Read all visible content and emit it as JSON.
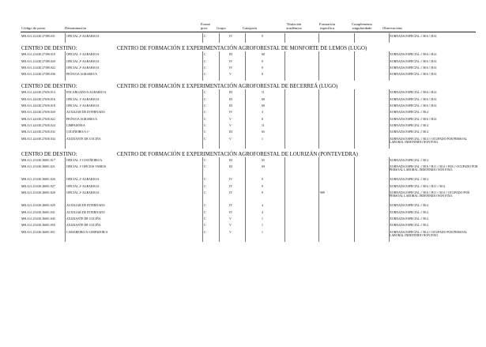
{
  "headers": {
    "codigo": "Código do posto",
    "denominacion": "Denominación",
    "forma": "Forma prov.",
    "grupo": "Grupo",
    "categoria": "Categoría",
    "titulacion": "Titulación académica",
    "formacion": "Formación específica",
    "complemento": "Complemento singularidade",
    "observacions": "Observacións"
  },
  "sections": [
    {
      "label": "",
      "title": "",
      "rows": [
        {
          "code": "MR.A11.22.630.27390.031",
          "den": "OFICIAL 2ª AGRARIO/A",
          "forma": "C",
          "grupo": "IV",
          "cat": "9",
          "form": "",
          "obs": "XORNADA ESPECIAL // B16 // B14"
        }
      ]
    },
    {
      "label": "CENTRO DE DESTINO:",
      "title": "CENTRO DE FORMACIÓN E EXPERIMENTACIÓN AGROFORESTAL DE MONFORTE DE LEMOS (LUGO)",
      "rows": [
        {
          "code": "MR.A11.23.630.27390.018",
          "den": "OFICIAL 1ª AGRARIO/A",
          "forma": "C",
          "grupo": "III",
          "cat": "68",
          "form": "",
          "obs": "XORNADA ESPECIAL // B16 // B14"
        },
        {
          "code": "MR.A11.23.630.27390.020",
          "den": "OFICIAL 2ª AGRARIO/A",
          "forma": "C",
          "grupo": "IV",
          "cat": "9",
          "form": "",
          "obs": "XORNADA ESPECIAL // B16 // B14"
        },
        {
          "code": "MR.A11.23.630.27390.022",
          "den": "OFICIAL 2ª AGRARIO/A",
          "forma": "C",
          "grupo": "IV",
          "cat": "9",
          "form": "",
          "obs": "XORNADA ESPECIAL // B16 // B14"
        },
        {
          "code": "MR.A11.23.630.27390.036",
          "den": "PEÓN/OA AGRARIO/A",
          "forma": "C",
          "grupo": "V",
          "cat": "8",
          "form": "",
          "obs": "XORNADA ESPECIAL // B16 // B14"
        }
      ]
    },
    {
      "label": "CENTRO DE DESTINO:",
      "title": "CENTRO DE FORMACIÓN E EXPERIMENTACIÓN AGROFORESTAL DE BECERREÁ (LUGO)",
      "rows": [
        {
          "code": "MR.A11.24.630.27650.014",
          "den": "ENCARGADO/A AGRARIO/A",
          "forma": "C",
          "grupo": "III",
          "cat": "11",
          "form": "",
          "obs": "XORNADA ESPECIAL // B16 // B14"
        },
        {
          "code": "MR.A11.24.630.27650.016",
          "den": "OFICIAL 1ª AGRARIO/A",
          "forma": "C",
          "grupo": "III",
          "cat": "68",
          "form": "",
          "obs": "XORNADA ESPECIAL // B16 // B14"
        },
        {
          "code": "MR.A11.24.630.27650.018",
          "den": "OFICIAL 1ª AGRARIO/A",
          "forma": "C",
          "grupo": "III",
          "cat": "68",
          "form": "",
          "obs": "XORNADA ESPECIAL // B16 // B14"
        },
        {
          "code": "MR.A11.24.630.27650.020",
          "den": "AUXILIAR DE INTERNADO",
          "forma": "C",
          "grupo": "IV",
          "cat": "4",
          "form": "",
          "obs": "XORNADA ESPECIAL // B14"
        },
        {
          "code": "MR.A11.24.630.27650.022",
          "den": "PEÓN/OA AGRARIO/A",
          "forma": "C",
          "grupo": "V",
          "cat": "8",
          "form": "",
          "obs": "XORNADA ESPECIAL // B16 // B14"
        },
        {
          "code": "MR.A11.24.630.27650.024",
          "den": "LIMPADOR/A",
          "forma": "C",
          "grupo": "V",
          "cat": "11",
          "form": "",
          "obs": "XORNADA ESPECIAL // B14"
        },
        {
          "code": "MR.A11.24.630.27650.032",
          "den": "COCIÑEIRO/A 1ª",
          "forma": "C",
          "grupo": "III",
          "cat": "65",
          "form": "",
          "obs": "XORNADA ESPECIAL // B14"
        },
        {
          "code": "MR.A11.24.630.27650.034",
          "den": "AXUDANTE DE COCIÑA",
          "forma": "C",
          "grupo": "V",
          "cat": "1",
          "form": "",
          "obs": "XORNADA ESPECIAL // B14 // OCUPADO POR PERSOAL LABORAL INDEFINIDO NON FIXO."
        }
      ]
    },
    {
      "label": "CENTRO DE DESTINO:",
      "title": "CENTRO DE FORMACIÓN E EXPERIMENTACIÓN AGROFORESTAL DE LOURIZÁN (PONTEVEDRA)",
      "rows": [
        {
          "code": "MR.A11.25.630.36001.017",
          "den": "OFICIAL 1ª COCIÑEIRO/A",
          "forma": "C",
          "grupo": "III",
          "cat": "65",
          "form": "",
          "obs": "XORNADA ESPECIAL // B14"
        },
        {
          "code": "MR.A11.25.630.36001.021",
          "den": "OFICIAL 1ª OFICIOS VARIOS",
          "forma": "C",
          "grupo": "III",
          "cat": "69",
          "form": "",
          "obs": "XORNADA ESPECIAL // B16 // B11 // B14 // B18 // OCUPADO POR PERSOAL LABORAL INDEFINIDO NON FIXO."
        },
        {
          "code": "MR.A11.25.630.36001.026",
          "den": "OFICIAL 2ª AGRARIO/A",
          "forma": "C",
          "grupo": "IV",
          "cat": "9",
          "form": "",
          "obs": "XORNADA ESPECIAL // B14"
        },
        {
          "code": "MR.A11.25.630.36001.027",
          "den": "OFICIAL 2ª AGRARIO/A",
          "forma": "C",
          "grupo": "IV",
          "cat": "9",
          "form": "",
          "obs": "XORNADA ESPECIAL // B16 // B11 // B14"
        },
        {
          "code": "MR.A11.25.630.36001.028",
          "den": "OFICIAL 2ª AGRARIO/A",
          "forma": "C",
          "grupo": "IV",
          "cat": "9",
          "form": "989",
          "obs": "XORNADA ESPECIAL // B16 // B11 // B14 // OCUPADO POR PERSOAL LABORAL INDEFINIDO NON FIXO."
        },
        {
          "code": "MR.A11.25.630.36001.029",
          "den": "AUXILIAR DE INTERNADO",
          "forma": "C",
          "grupo": "IV",
          "cat": "4",
          "form": "",
          "obs": "XORNADA ESPECIAL // B14"
        },
        {
          "code": "MR.A11.25.630.36001.031",
          "den": "AUXILIAR DE INTERNADO",
          "forma": "C",
          "grupo": "IV",
          "cat": "4",
          "form": "",
          "obs": "XORNADA ESPECIAL // B14"
        },
        {
          "code": "MR.A11.25.630.36001.045",
          "den": "AXUDANTE DE COCIÑA",
          "forma": "C",
          "grupo": "V",
          "cat": "1",
          "form": "",
          "obs": "XORNADA ESPECIAL // B14"
        },
        {
          "code": "MR.A11.25.630.36001.050",
          "den": "AXUDANTE DE COCIÑA",
          "forma": "C",
          "grupo": "V",
          "cat": "1",
          "form": "",
          "obs": "XORNADA ESPECIAL // B14"
        },
        {
          "code": "MR.A11.25.630.36001.051",
          "den": "CAMAREIRO/A-LIMPADOR/A",
          "forma": "C",
          "grupo": "V",
          "cat": "1",
          "form": "",
          "obs": "XORNADA ESPECIAL // B14 // OCUPADO POR PERSOAL LABORAL INDEFINIDO NON FIXO."
        }
      ]
    }
  ]
}
